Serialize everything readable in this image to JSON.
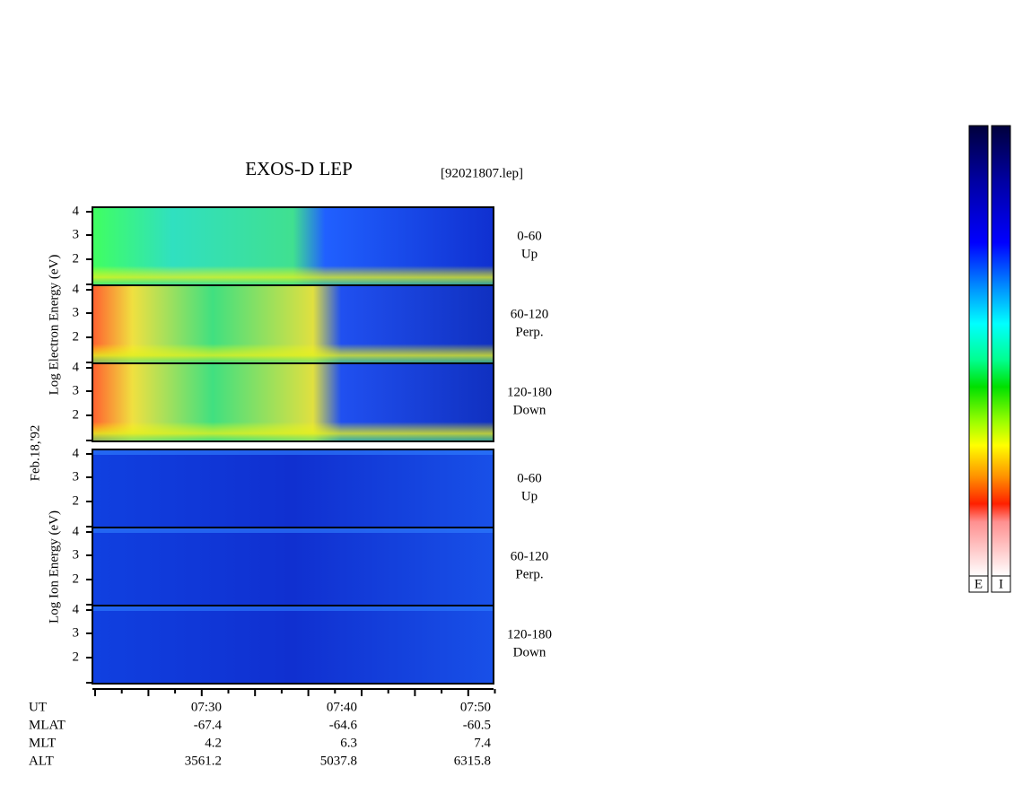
{
  "header": {
    "title": "EXOS-D LEP",
    "file": "[92021807.lep]",
    "date": "Feb.18,'92"
  },
  "electron_label": "Log Electron Energy (eV)",
  "ion_label": "Log Ion Energy (eV)",
  "panels": [
    {
      "ticks": [
        "4",
        "3",
        "2"
      ],
      "angle": "0-60",
      "direction": "Up"
    },
    {
      "ticks": [
        "4",
        "3",
        "2"
      ],
      "angle": "60-120",
      "direction": "Perp."
    },
    {
      "ticks": [
        "4",
        "3",
        "2"
      ],
      "angle": "120-180",
      "direction": "Down"
    },
    {
      "ticks": [
        "4",
        "3",
        "2"
      ],
      "angle": "0-60",
      "direction": "Up"
    },
    {
      "ticks": [
        "4",
        "3",
        "2"
      ],
      "angle": "60-120",
      "direction": "Perp."
    },
    {
      "ticks": [
        "4",
        "3",
        "2"
      ],
      "angle": "120-180",
      "direction": "Down"
    }
  ],
  "ephemeris": [
    [
      "UT",
      "07:30",
      "07:40",
      "07:50"
    ],
    [
      "MLAT",
      "-67.4",
      "-64.6",
      "-60.5"
    ],
    [
      "MLT",
      "4.2",
      "6.3",
      "7.4"
    ],
    [
      "ALT",
      "3561.2",
      "5037.8",
      "6315.8"
    ]
  ],
  "colorbar_labels": [
    "E",
    "I"
  ]
}
